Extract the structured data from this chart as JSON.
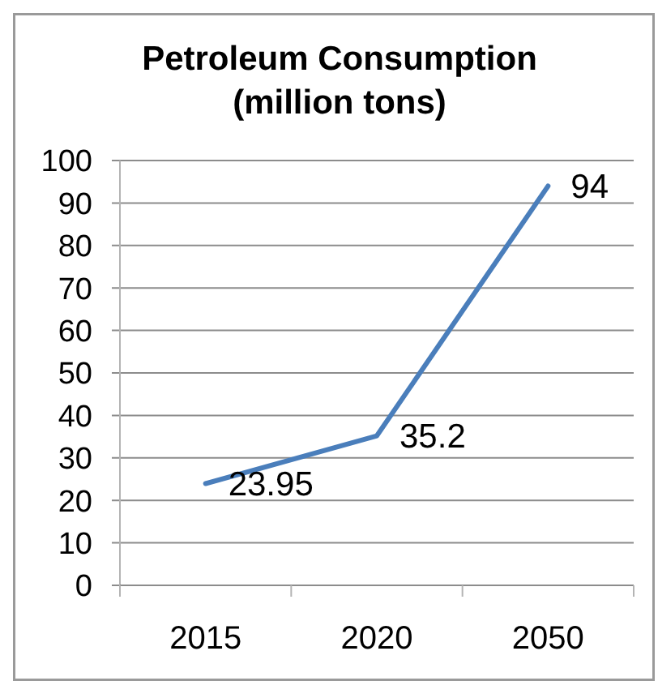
{
  "chart_data": {
    "type": "line",
    "title": "Petroleum Consumption\n(million tons)",
    "categories": [
      "2015",
      "2020",
      "2050"
    ],
    "series": [
      {
        "color": "#4a7ebb",
        "values": [
          23.95,
          35.2,
          94
        ]
      }
    ],
    "ylim": [
      0,
      100
    ],
    "yticks": [
      0,
      10,
      20,
      30,
      40,
      50,
      60,
      70,
      80,
      90,
      100
    ],
    "grid": "y",
    "data_labels": true
  }
}
